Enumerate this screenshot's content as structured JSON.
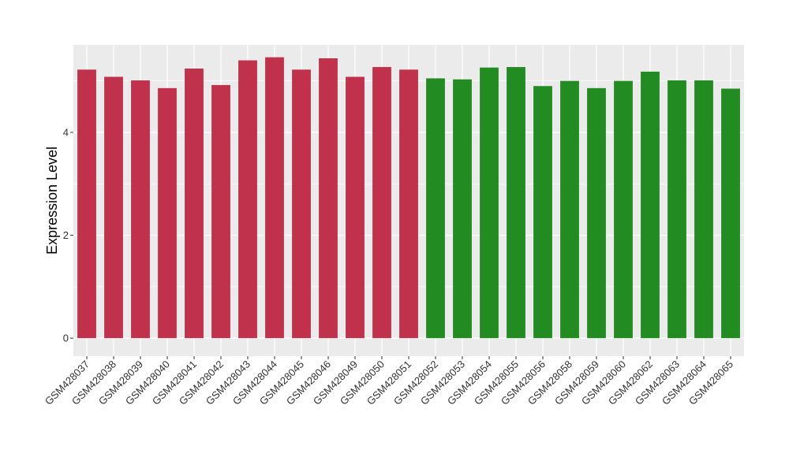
{
  "chart_data": {
    "type": "bar",
    "title": "",
    "xlabel": "",
    "ylabel": "Expression Level",
    "ylim": [
      -0.35,
      5.7
    ],
    "y_ticks": [
      0,
      2,
      4
    ],
    "grid": true,
    "panel_background": "#EBEBEB",
    "categories": [
      "GSM428037",
      "GSM428038",
      "GSM428039",
      "GSM428040",
      "GSM428041",
      "GSM428042",
      "GSM428043",
      "GSM428044",
      "GSM428045",
      "GSM428046",
      "GSM428049",
      "GSM428050",
      "GSM428051",
      "GSM428052",
      "GSM428053",
      "GSM428054",
      "GSM428055",
      "GSM428056",
      "GSM428058",
      "GSM428059",
      "GSM428060",
      "GSM428062",
      "GSM428063",
      "GSM428064",
      "GSM428065"
    ],
    "values": [
      5.22,
      5.08,
      5.01,
      4.86,
      5.24,
      4.92,
      5.4,
      5.46,
      5.22,
      5.44,
      5.08,
      5.27,
      5.22,
      5.05,
      5.03,
      5.26,
      5.27,
      4.9,
      5.0,
      4.86,
      5.0,
      5.18,
      5.01,
      5.01,
      4.85
    ],
    "bar_colors": [
      "#C0314B",
      "#C0314B",
      "#C0314B",
      "#C0314B",
      "#C0314B",
      "#C0314B",
      "#C0314B",
      "#C0314B",
      "#C0314B",
      "#C0314B",
      "#C0314B",
      "#C0314B",
      "#C0314B",
      "#228B22",
      "#228B22",
      "#228B22",
      "#228B22",
      "#228B22",
      "#228B22",
      "#228B22",
      "#228B22",
      "#228B22",
      "#228B22",
      "#228B22",
      "#228B22"
    ]
  }
}
